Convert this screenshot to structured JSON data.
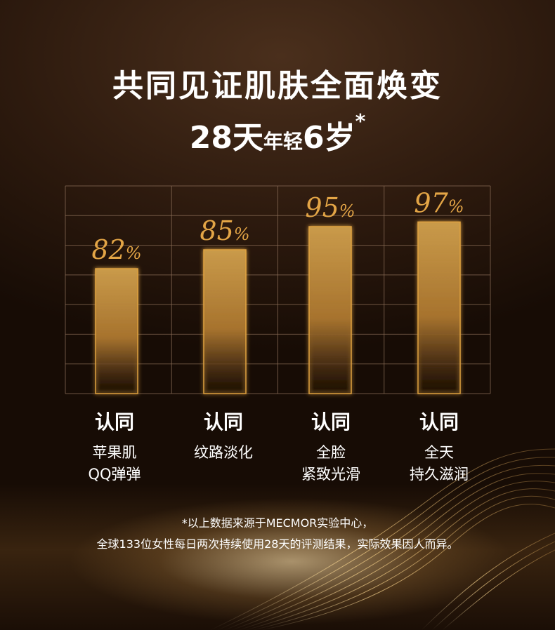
{
  "title": {
    "line1": "共同见证肌肤全面焕变",
    "line2_part1": "28天",
    "line2_part2": "年轻",
    "line2_part3": "6岁",
    "line2_star": "*"
  },
  "chart_data": {
    "type": "bar",
    "categories": [
      "认同 苹果肌 QQ弹弹",
      "认同 纹路淡化",
      "认同 全脸 紧致光滑",
      "认同 全天 持久滋润"
    ],
    "values": [
      82,
      85,
      95,
      97
    ],
    "value_labels": [
      "82%",
      "85%",
      "95%",
      "97%"
    ],
    "grid": true,
    "colors": {
      "bar_top": "#c99a4a",
      "bar_bottom": "#2a160a",
      "label": "#e3a546",
      "grid": "#8a6c57"
    }
  },
  "categories": [
    {
      "agree": "认同",
      "line1": "苹果肌",
      "line2": "QQ弹弹"
    },
    {
      "agree": "认同",
      "line1": "纹路淡化",
      "line2": ""
    },
    {
      "agree": "认同",
      "line1": "全脸",
      "line2": "紧致光滑"
    },
    {
      "agree": "认同",
      "line1": "全天",
      "line2": "持久滋润"
    }
  ],
  "footnote": {
    "line1": "*以上数据来源于MECMOR实验中心，",
    "line2": "全球133位女性每日两次持续使用28天的评测结果，实际效果因人而异。"
  }
}
